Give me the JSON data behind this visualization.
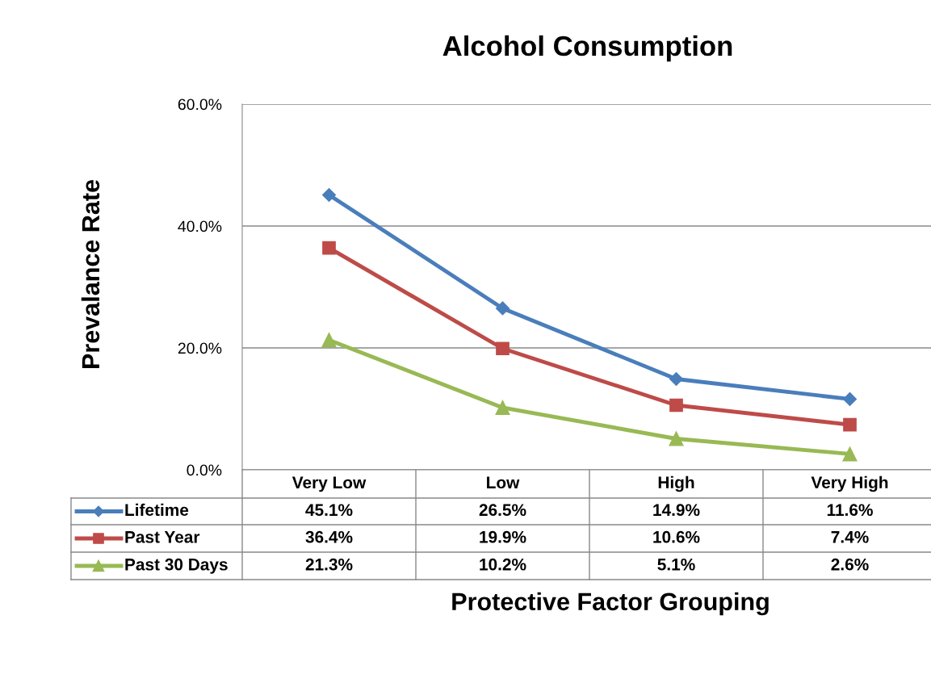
{
  "chart_data": {
    "type": "line",
    "title": "Alcohol Consumption",
    "xlabel": "Protective Factor Grouping",
    "ylabel": "Prevalance Rate",
    "categories": [
      "Very Low",
      "Low",
      "High",
      "Very High"
    ],
    "series": [
      {
        "name": "Lifetime",
        "color": "#4a7ebb",
        "marker": "diamond",
        "values": [
          45.1,
          26.5,
          14.9,
          11.6
        ],
        "value_labels": [
          "45.1%",
          "26.5%",
          "14.9%",
          "11.6%"
        ]
      },
      {
        "name": "Past Year",
        "color": "#be4b48",
        "marker": "square",
        "values": [
          36.4,
          19.9,
          10.6,
          7.4
        ],
        "value_labels": [
          "36.4%",
          "19.9%",
          "10.6%",
          "7.4%"
        ]
      },
      {
        "name": "Past 30 Days",
        "color": "#98b954",
        "marker": "triangle",
        "values": [
          21.3,
          10.2,
          5.1,
          2.6
        ],
        "value_labels": [
          "21.3%",
          "10.2%",
          "5.1%",
          "2.6%"
        ]
      }
    ],
    "ylim": [
      0,
      60
    ],
    "yticks": [
      {
        "value": 0,
        "label": "0.0%"
      },
      {
        "value": 20,
        "label": "20.0%"
      },
      {
        "value": 40,
        "label": "40.0%"
      },
      {
        "value": 60,
        "label": "60.0%"
      }
    ],
    "grid": "y",
    "legend": "bottom",
    "line_style": "solid"
  }
}
